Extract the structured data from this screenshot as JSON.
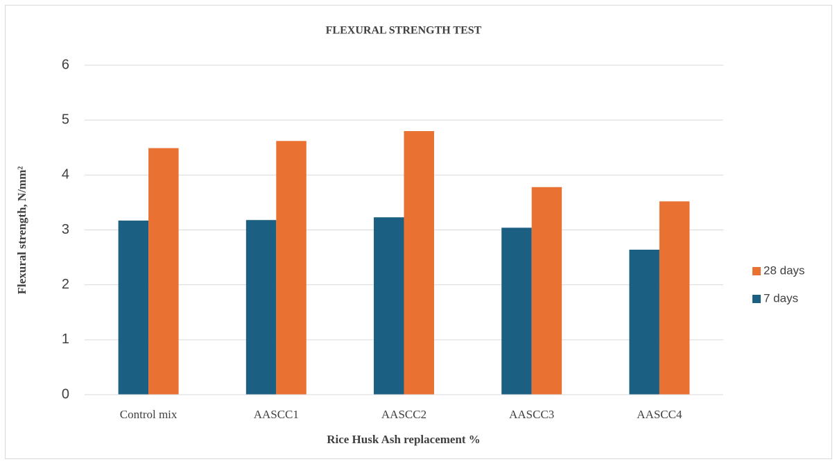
{
  "chart_data": {
    "type": "bar",
    "title": "FLEXURAL STRENGTH TEST",
    "x_label": "Rice Husk Ash replacement %",
    "y_label": "Flexural strength, N/mm²",
    "categories": [
      "Control mix",
      "AASCC1",
      "AASCC2",
      "AASCC3",
      "AASCC4"
    ],
    "series": [
      {
        "name": "7 days",
        "color": "#1b5f82",
        "values": [
          3.17,
          3.18,
          3.23,
          3.04,
          2.64
        ]
      },
      {
        "name": "28 days",
        "color": "#e97132",
        "values": [
          4.49,
          4.62,
          4.8,
          3.78,
          3.52
        ]
      }
    ],
    "ylim": [
      0,
      6
    ],
    "yticks": [
      0,
      1,
      2,
      3,
      4,
      5,
      6
    ],
    "grid": true,
    "legend": "right"
  }
}
